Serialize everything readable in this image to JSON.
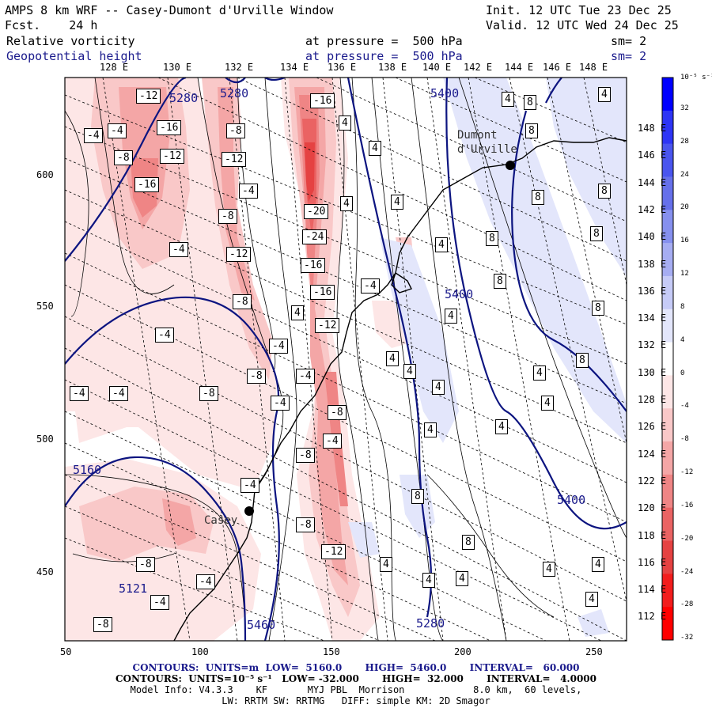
{
  "header": {
    "title": "AMPS 8 km WRF -- Casey-Dumont d'Urville Window",
    "forecast": "Fcst.    24 h",
    "init": "Init. 12 UTC Tue 23 Dec 25",
    "valid": "Valid. 12 UTC Wed 24 Dec 25",
    "field1_name": "Relative vorticity",
    "field1_level": "at pressure =  500 hPa",
    "field1_sm": "sm= 2",
    "field2_name": "Geopotential height",
    "field2_level": "at pressure =  500 hPa",
    "field2_sm": "sm= 2"
  },
  "axes": {
    "lon_labels": [
      "128 E",
      "130 E",
      "132 E",
      "134 E",
      "136 E",
      "138 E",
      "140 E",
      "142 E",
      "144 E",
      "146 E",
      "148 E"
    ],
    "lat_labels": [
      "148 E",
      "146 E",
      "144 E",
      "142 E",
      "140 E",
      "138 E",
      "136 E",
      "134 E",
      "132 E",
      "130 E",
      "128 E",
      "126 E",
      "124 E",
      "122 E",
      "120 E",
      "118 E",
      "116 E",
      "114 E",
      "112 E"
    ],
    "x_ticks": [
      "50",
      "100",
      "150",
      "200",
      "250"
    ],
    "y_ticks": [
      "600",
      "550",
      "500",
      "450"
    ]
  },
  "colorbar": {
    "unit_label": "10⁻⁵ s⁻¹",
    "labels": [
      "32",
      "28",
      "24",
      "20",
      "16",
      "12",
      "8",
      "4",
      "0",
      "-4",
      "-8",
      "-12",
      "-16",
      "-20",
      "-24",
      "-28",
      "-32"
    ],
    "colors": [
      "#0000ff",
      "#2e35f5",
      "#4a55ee",
      "#6670ea",
      "#8690ee",
      "#a6adf2",
      "#c6cbf7",
      "#e3e6fb",
      "#ffffff",
      "#fde6e6",
      "#f9c8c8",
      "#f4a6a6",
      "#ef8585",
      "#ea6363",
      "#e54242",
      "#f21d1d",
      "#ff0000"
    ]
  },
  "places": {
    "dumont": "Dumont\nd'Urville",
    "casey": "Casey"
  },
  "height_labels": [
    "5400",
    "5400",
    "5400",
    "5280",
    "5280",
    "5160",
    "5121",
    "5460",
    "5280"
  ],
  "vort_labels_neg": [
    "-12",
    "-16",
    "-12",
    "-16",
    "-8",
    "-4",
    "-4",
    "-8",
    "-12",
    "-12",
    "-4",
    "-8",
    "-4",
    "-8",
    "-16",
    "-20",
    "-24",
    "-16",
    "-16",
    "-12",
    "-8",
    "-4",
    "-4",
    "-4",
    "-8",
    "-4",
    "-8",
    "-8",
    "-12",
    "-8",
    "-4",
    "-4",
    "-8",
    "-8",
    "-4",
    "-4",
    "-4",
    "-4",
    "-4"
  ],
  "vort_labels_pos": [
    "4",
    "8",
    "4",
    "8",
    "4",
    "4",
    "4",
    "8",
    "8",
    "8",
    "8",
    "8",
    "8",
    "8",
    "4",
    "4",
    "4",
    "4",
    "4",
    "4",
    "4",
    "8",
    "8",
    "4",
    "4",
    "4",
    "4",
    "4",
    "4",
    "4",
    "4",
    "4",
    "4"
  ],
  "footer": {
    "line1_a": "CONTOURS:  UNITS=m  LOW=  5160.0       HIGH=  5460.0       INTERVAL=   60.000",
    "line2": "CONTOURS:  UNITS=10⁻⁵ s⁻¹   LOW= -32.000       HIGH=  32.000       INTERVAL=   4.0000",
    "line3": "Model Info: V4.3.3    KF       MYJ PBL  Morrison            8.0 km,  60 levels,",
    "line4": "LW: RRTM SW: RRTMG   DIFF: simple KM: 2D Smagor"
  }
}
